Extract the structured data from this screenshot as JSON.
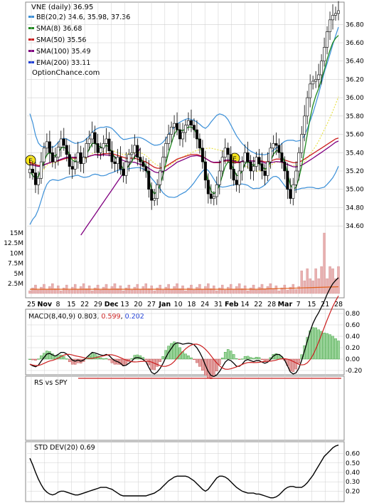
{
  "colors": {
    "bb": "#3a8fd8",
    "bb_mid": "#e8e24a",
    "sma8": "#1f8a1f",
    "sma50": "#cc1f1f",
    "sma100": "#800080",
    "ema200": "#1f3fd8",
    "up_body": "#ffffff",
    "down_body": "#000000",
    "macd_line": "#000000",
    "signal_line": "#cc1f1f",
    "hist_pos": "#2e9a2e",
    "hist_neg": "#c03a3a",
    "volume_bar": "#e8b0b0",
    "volume_avg": "#e0601c",
    "rs_line": "#cc1f1f",
    "std_line": "#000000",
    "grid": "#cfcfcf"
  },
  "chart_data": [
    {
      "type": "candlestick",
      "title": "VNE (daily) 36.95",
      "legend": [
        {
          "label": "BB(20,2) 34.6, 35.98, 37.36",
          "color": "#3a8fd8"
        },
        {
          "label": "SMA(8) 36.68",
          "color": "#1f8a1f"
        },
        {
          "label": "SMA(50) 35.56",
          "color": "#cc1f1f"
        },
        {
          "label": "SMA(100) 35.49",
          "color": "#800080"
        },
        {
          "label": "EMA(200) 33.11",
          "color": "#1f3fd8"
        }
      ],
      "watermark": "OptionChance.com",
      "legend_position": "top-left",
      "y_axis_side": "right",
      "ylim": [
        34.5,
        36.95
      ],
      "y_ticks": [
        "36.80",
        "36.60",
        "36.40",
        "36.20",
        "36.00",
        "35.80",
        "35.60",
        "35.40",
        "35.20",
        "35.00",
        "34.80",
        "34.60"
      ],
      "x_labels": [
        "25",
        "Nov",
        "8",
        "15",
        "22",
        "29",
        "Dec",
        "13",
        "20",
        "27",
        "Jan",
        "10",
        "18",
        "24",
        "31",
        "Feb",
        "14",
        "22",
        "28",
        "Mar",
        "7",
        "15",
        "21",
        "28"
      ],
      "earnings_markers": [
        "E",
        "E"
      ],
      "price_close": [
        35.22,
        35.18,
        35.05,
        35.12,
        35.3,
        35.45,
        35.52,
        35.4,
        35.3,
        35.35,
        35.46,
        35.55,
        35.48,
        35.38,
        35.25,
        35.22,
        35.3,
        35.4,
        35.28,
        35.35,
        35.5,
        35.55,
        35.62,
        35.5,
        35.4,
        35.45,
        35.5,
        35.55,
        35.42,
        35.3,
        35.28,
        35.35,
        35.22,
        35.15,
        35.3,
        35.38,
        35.4,
        35.48,
        35.35,
        35.3,
        35.25,
        35.2,
        35.0,
        34.88,
        34.9,
        35.05,
        35.2,
        35.35,
        35.5,
        35.6,
        35.68,
        35.72,
        35.65,
        35.55,
        35.62,
        35.7,
        35.75,
        35.7,
        35.65,
        35.55,
        35.45,
        35.3,
        35.1,
        34.95,
        34.9,
        34.92,
        35.05,
        35.2,
        35.35,
        35.45,
        35.38,
        35.22,
        35.1,
        35.05,
        35.2,
        35.3,
        35.4,
        35.3,
        35.2,
        35.25,
        35.35,
        35.28,
        35.2,
        35.15,
        35.3,
        35.45,
        35.5,
        35.48,
        35.4,
        35.3,
        35.2,
        35.0,
        34.9,
        35.05,
        35.2,
        35.4,
        35.6,
        35.8,
        36.0,
        36.15,
        36.18,
        36.2,
        36.25,
        36.4,
        36.55,
        36.72,
        36.85,
        36.9,
        36.92,
        36.95
      ],
      "sma8": [
        35.2,
        35.15,
        35.12,
        35.14,
        35.22,
        35.3,
        35.38,
        35.4,
        35.38,
        35.36,
        35.4,
        35.45,
        35.46,
        35.44,
        35.38,
        35.32,
        35.3,
        35.32,
        35.3,
        35.32,
        35.38,
        35.44,
        35.5,
        35.5,
        35.48,
        35.46,
        35.46,
        35.48,
        35.46,
        35.4,
        35.35,
        35.32,
        35.28,
        35.22,
        35.22,
        35.26,
        35.3,
        35.36,
        35.36,
        35.34,
        35.3,
        35.25,
        35.12,
        35.0,
        34.95,
        34.98,
        35.05,
        35.15,
        35.28,
        35.4,
        35.5,
        35.6,
        35.65,
        35.65,
        35.64,
        35.66,
        35.68,
        35.68,
        35.66,
        35.6,
        35.5,
        35.38,
        35.22,
        35.08,
        34.98,
        34.95,
        34.98,
        35.05,
        35.15,
        35.25,
        35.3,
        35.28,
        35.22,
        35.15,
        35.15,
        35.2,
        35.28,
        35.3,
        35.28,
        35.26,
        35.28,
        35.28,
        35.25,
        35.22,
        35.24,
        35.3,
        35.38,
        35.42,
        35.42,
        35.38,
        35.3,
        35.18,
        35.05,
        35.0,
        35.02,
        35.12,
        35.25,
        35.42,
        35.6,
        35.78,
        35.92,
        36.02,
        36.1,
        36.2,
        36.3,
        36.42,
        36.52,
        36.6,
        36.65,
        36.68
      ],
      "sma50": [
        35.3,
        35.28,
        35.27,
        35.26,
        35.26,
        35.27,
        35.28,
        35.29,
        35.3,
        35.3,
        35.31,
        35.32,
        35.33,
        35.34,
        35.34,
        35.34,
        35.34,
        35.34,
        35.34,
        35.34,
        35.35,
        35.36,
        35.37,
        35.38,
        35.38,
        35.38,
        35.39,
        35.39,
        35.39,
        35.39,
        35.38,
        35.37,
        35.36,
        35.35,
        35.34,
        35.34,
        35.34,
        35.34,
        35.33,
        35.32,
        35.31,
        35.3,
        35.28,
        35.26,
        35.24,
        35.23,
        35.23,
        35.24,
        35.25,
        35.27,
        35.29,
        35.31,
        35.33,
        35.34,
        35.35,
        35.36,
        35.37,
        35.38,
        35.38,
        35.38,
        35.37,
        35.36,
        35.34,
        35.32,
        35.3,
        35.29,
        35.29,
        35.29,
        35.3,
        35.31,
        35.31,
        35.31,
        35.3,
        35.29,
        35.29,
        35.3,
        35.31,
        35.31,
        35.31,
        35.31,
        35.31,
        35.31,
        35.31,
        35.3,
        35.3,
        35.31,
        35.32,
        35.33,
        35.33,
        35.33,
        35.32,
        35.31,
        35.3,
        35.29,
        35.29,
        35.3,
        35.31,
        35.33,
        35.35,
        35.37,
        35.39,
        35.41,
        35.43,
        35.45,
        35.47,
        35.49,
        35.51,
        35.53,
        35.55,
        35.56
      ],
      "macd_header": {
        "label": "MACD(8,40,9)",
        "macd": "0.803",
        "signal": "0.599",
        "histogram": "0.202"
      },
      "macd_ylim": [
        -0.2,
        0.8
      ],
      "macd_ticks": [
        "0.80",
        "0.60",
        "0.40",
        "0.20",
        "0.00",
        "-0.20"
      ],
      "volume_ticks": [
        "15M",
        "12.5M",
        "10M",
        "7.5M",
        "5M",
        "2.5M"
      ],
      "rs_label": "RS vs SPY",
      "std_label": "STD DEV(20) 0.69",
      "std_ylim": [
        0.12,
        0.68
      ],
      "std_ticks": [
        "0.60",
        "0.50",
        "0.40",
        "0.30",
        "0.20"
      ],
      "std_values": [
        0.55,
        0.48,
        0.4,
        0.33,
        0.27,
        0.22,
        0.19,
        0.17,
        0.16,
        0.17,
        0.19,
        0.2,
        0.2,
        0.19,
        0.18,
        0.17,
        0.16,
        0.16,
        0.17,
        0.18,
        0.19,
        0.2,
        0.21,
        0.22,
        0.23,
        0.24,
        0.24,
        0.24,
        0.23,
        0.22,
        0.2,
        0.18,
        0.16,
        0.15,
        0.15,
        0.15,
        0.15,
        0.15,
        0.15,
        0.15,
        0.15,
        0.15,
        0.16,
        0.17,
        0.18,
        0.2,
        0.22,
        0.25,
        0.28,
        0.31,
        0.33,
        0.35,
        0.36,
        0.36,
        0.36,
        0.36,
        0.35,
        0.33,
        0.31,
        0.28,
        0.25,
        0.22,
        0.2,
        0.22,
        0.26,
        0.3,
        0.34,
        0.36,
        0.36,
        0.35,
        0.33,
        0.3,
        0.27,
        0.24,
        0.22,
        0.2,
        0.19,
        0.18,
        0.18,
        0.18,
        0.17,
        0.17,
        0.16,
        0.15,
        0.14,
        0.13,
        0.13,
        0.14,
        0.16,
        0.19,
        0.22,
        0.24,
        0.25,
        0.25,
        0.24,
        0.24,
        0.24,
        0.26,
        0.29,
        0.33,
        0.37,
        0.42,
        0.47,
        0.52,
        0.57,
        0.6,
        0.63,
        0.66,
        0.68,
        0.69
      ]
    }
  ]
}
